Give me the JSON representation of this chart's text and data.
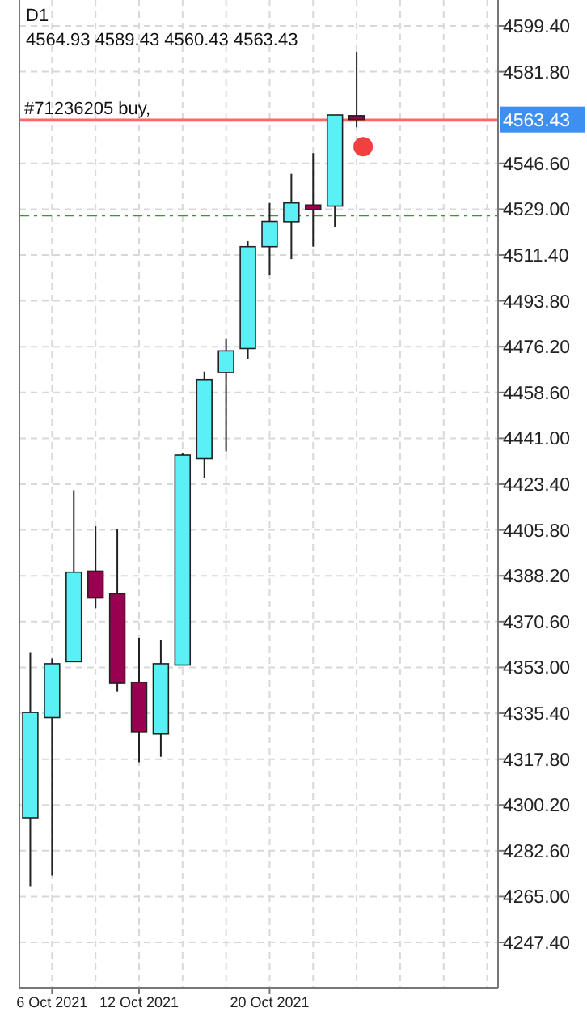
{
  "chart_data": {
    "type": "candlestick",
    "title": "D1",
    "subtitle": "4564.93 4589.43 4560.43 4563.43",
    "categories": [
      null,
      "6 Oct 2021",
      null,
      null,
      null,
      "12 Oct 2021",
      null,
      null,
      null,
      null,
      null,
      "20 Oct 2021",
      null,
      null,
      null,
      null,
      null,
      null,
      null,
      null,
      null,
      null
    ],
    "ohlc": [
      [
        4295.3,
        4358.9,
        4269.0,
        4335.7
      ],
      [
        4333.7,
        4356.4,
        4273.1,
        4354.4
      ],
      [
        4355.2,
        4421.1,
        4355.2,
        4389.6
      ],
      [
        4390.0,
        4407.2,
        4375.7,
        4379.7
      ],
      [
        4381.3,
        4406.2,
        4343.6,
        4346.9
      ],
      [
        4347.3,
        4364.3,
        4316.6,
        4328.3
      ],
      [
        4327.4,
        4363.7,
        4318.7,
        4354.4
      ],
      [
        4353.9,
        4435.2,
        4353.9,
        4434.6
      ],
      [
        4433.2,
        4466.7,
        4425.7,
        4463.6
      ],
      [
        4466.3,
        4479.2,
        4436.0,
        4474.6
      ],
      [
        4475.5,
        4516.7,
        4471.5,
        4514.6
      ],
      [
        4514.6,
        4531.4,
        4503.6,
        4524.3
      ],
      [
        4524.2,
        4542.6,
        4509.8,
        4531.4
      ],
      [
        4530.6,
        4550.5,
        4514.6,
        4528.9
      ],
      [
        4530.2,
        4565.2,
        4522.3,
        4565.2
      ],
      [
        4564.93,
        4589.43,
        4560.43,
        4563.43
      ],
      null,
      null,
      null,
      null,
      null,
      null
    ],
    "colors": [
      "#5af0f5",
      "#5af0f5",
      "#5af0f5",
      "#990050",
      "#990050",
      "#990050",
      "#5af0f5",
      "#5af0f5",
      "#5af0f5",
      "#5af0f5",
      "#5af0f5",
      "#5af0f5",
      "#5af0f5",
      "#990050",
      "#5af0f5",
      "#990050",
      null,
      null,
      null,
      null,
      null,
      null
    ],
    "ylim": [
      4230.0,
      4609.35
    ],
    "yticks": [
      {
        "value": 4247.4,
        "label": "4247.40"
      },
      {
        "value": 4265,
        "label": "4265.00"
      },
      {
        "value": 4282.6,
        "label": "4282.60"
      },
      {
        "value": 4300.2,
        "label": "4300.20"
      },
      {
        "value": 4317.8,
        "label": "4317.80"
      },
      {
        "value": 4335.4,
        "label": "4335.40"
      },
      {
        "value": 4353,
        "label": "4353.00"
      },
      {
        "value": 4370.6,
        "label": "4370.60"
      },
      {
        "value": 4388.2,
        "label": "4388.20"
      },
      {
        "value": 4405.8,
        "label": "4405.80"
      },
      {
        "value": 4423.4,
        "label": "4423.40"
      },
      {
        "value": 4441,
        "label": "4441.00"
      },
      {
        "value": 4458.6,
        "label": "4458.60"
      },
      {
        "value": 4476.2,
        "label": "4476.20"
      },
      {
        "value": 4493.8,
        "label": "4493.80"
      },
      {
        "value": 4511.4,
        "label": "4511.40"
      },
      {
        "value": 4529,
        "label": "4529.00"
      },
      {
        "value": 4546.6,
        "label": "4546.60"
      },
      {
        "value": 4581.8,
        "label": "4581.80"
      },
      {
        "value": 4599.4,
        "label": "4599.40"
      }
    ],
    "grid": true,
    "ref_lines": [
      {
        "axis": "y",
        "value": 4563.0,
        "label": "#71236205 buy,",
        "color": "#3399ff"
      },
      {
        "axis": "y",
        "value": 4563.43,
        "label": "4563.43",
        "color": "#ff6666"
      },
      {
        "axis": "y",
        "value": 4526.6,
        "color": "#339933",
        "line_style": "dashed"
      }
    ]
  }
}
